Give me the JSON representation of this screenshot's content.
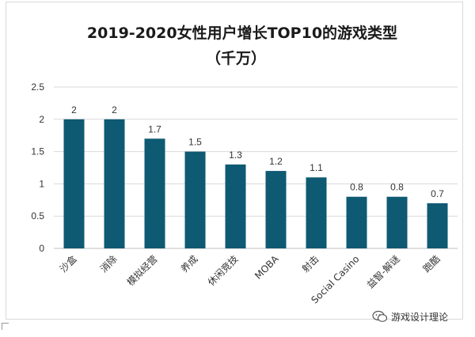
{
  "chart_data": {
    "type": "bar",
    "title": "2019-2020女性用户增长TOP10的游戏类型",
    "subtitle": "（千万）",
    "categories": [
      "沙盒",
      "消除",
      "模拟经营",
      "养成",
      "休闲竞技",
      "MOBA",
      "射击",
      "Social Casino",
      "益智-解谜",
      "跑酷"
    ],
    "values": [
      2,
      2,
      1.7,
      1.5,
      1.3,
      1.2,
      1.1,
      0.8,
      0.8,
      0.7
    ],
    "value_labels": [
      "2",
      "2",
      "1.7",
      "1.5",
      "1.3",
      "1.2",
      "1.1",
      "0.8",
      "0.8",
      "0.7"
    ],
    "yticks": [
      "0",
      "0.5",
      "1",
      "1.5",
      "2",
      "2.5"
    ],
    "ylim": [
      0,
      2.5
    ],
    "grid": true,
    "legend": "none",
    "bar_color": "#0e5a73",
    "grid_color": "#d9d9d9"
  },
  "watermark": {
    "text": "游戏设计理论",
    "icon": "wechat-icon"
  }
}
